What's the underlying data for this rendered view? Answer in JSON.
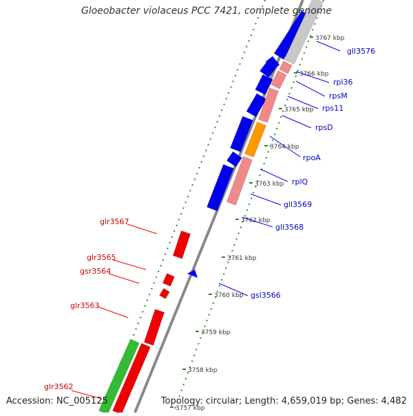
{
  "title": "Gloeobacter violaceus PCC 7421, complete genome",
  "accession": "Accession: NC_005125",
  "topology": "Topology: circular; Length: 4,659,019 bp; Genes: 4,482",
  "colors": {
    "background": "#ffffff",
    "forward_gene": "#0000ee",
    "reverse_gene": "#ee0000",
    "rrna_pink": "#f08a8a",
    "orange_gene": "#ff9900",
    "green_gene": "#33bb33",
    "grey_gene": "#c8c8c8",
    "tick_green": "#228822"
  },
  "kbp_labels": [
    "3767 kbp",
    "3766 kbp",
    "3765 kbp",
    "3764 kbp",
    "3763 kbp",
    "3762 kbp",
    "3761 kbp",
    "3760 kbp",
    "3759 kbp",
    "3758 kbp",
    "3757 kbp"
  ],
  "forward_labels": [
    "gll3576",
    "rpl36",
    "rpsM",
    "rps11",
    "rpsD",
    "rpoA",
    "rplQ",
    "gll3569",
    "gll3568",
    "gsl3566"
  ],
  "reverse_labels": [
    "glr3567",
    "glr3565",
    "gsr3564",
    "glr3563",
    "glr3562"
  ]
}
